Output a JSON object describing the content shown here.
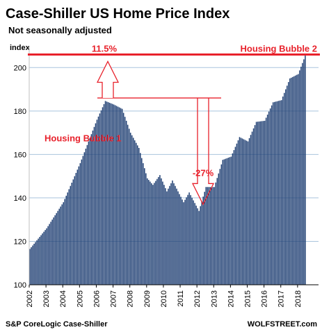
{
  "chart_data": {
    "type": "bar",
    "title": "Case-Shiller US Home Price Index",
    "subtitle": "Not seasonally adjusted",
    "ylabel": "index",
    "ylim": [
      100,
      210
    ],
    "yticks": [
      100,
      120,
      140,
      160,
      180,
      200
    ],
    "xticks": [
      "2002",
      "2003",
      "2004",
      "2005",
      "2006",
      "2007",
      "2008",
      "2009",
      "2010",
      "2011",
      "2012",
      "2013",
      "2014",
      "2015",
      "2016",
      "2017",
      "2018"
    ],
    "grid": true,
    "bar_color": "#1f3f73",
    "accent_color": "#e8212b",
    "anchors": [
      {
        "date": "2002-01",
        "value": 116.5
      },
      {
        "date": "2003-01",
        "value": 126
      },
      {
        "date": "2004-01",
        "value": 138
      },
      {
        "date": "2005-01",
        "value": 156
      },
      {
        "date": "2006-01",
        "value": 176
      },
      {
        "date": "2006-07",
        "value": 184.6
      },
      {
        "date": "2007-01",
        "value": 183
      },
      {
        "date": "2007-07",
        "value": 181
      },
      {
        "date": "2008-01",
        "value": 170
      },
      {
        "date": "2008-07",
        "value": 163
      },
      {
        "date": "2009-01",
        "value": 149
      },
      {
        "date": "2009-05",
        "value": 146
      },
      {
        "date": "2009-10",
        "value": 150.5
      },
      {
        "date": "2010-03",
        "value": 143
      },
      {
        "date": "2010-07",
        "value": 148
      },
      {
        "date": "2011-03",
        "value": 138
      },
      {
        "date": "2011-07",
        "value": 142.5
      },
      {
        "date": "2012-02",
        "value": 134
      },
      {
        "date": "2012-07",
        "value": 145
      },
      {
        "date": "2013-01",
        "value": 145
      },
      {
        "date": "2013-07",
        "value": 157.5
      },
      {
        "date": "2014-01",
        "value": 159
      },
      {
        "date": "2014-07",
        "value": 168
      },
      {
        "date": "2015-01",
        "value": 166
      },
      {
        "date": "2015-07",
        "value": 175
      },
      {
        "date": "2016-01",
        "value": 175.5
      },
      {
        "date": "2016-07",
        "value": 184
      },
      {
        "date": "2017-01",
        "value": 185
      },
      {
        "date": "2017-07",
        "value": 195
      },
      {
        "date": "2018-01",
        "value": 197
      },
      {
        "date": "2018-06",
        "value": 205.5
      }
    ],
    "annotations": {
      "bubble2_line_value": 206,
      "reference_line_value": 186,
      "percent_up": "11.5%",
      "percent_down": "-27%",
      "bubble1_label": "Housing Bubble 1",
      "bubble2_label": "Housing Bubble 2"
    }
  },
  "footer": {
    "source": "S&P CoreLogic Case-Shiller",
    "brand": "WOLFSTREET.com"
  }
}
